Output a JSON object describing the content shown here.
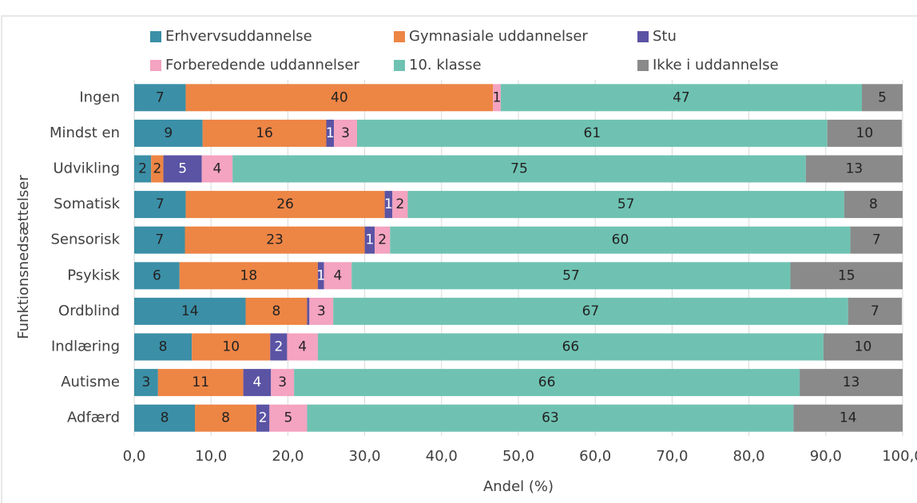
{
  "chart_data": {
    "type": "stacked-bar-horizontal",
    "y_label": "Funktionsnedsættelser",
    "x_label": "Andel (%)",
    "categories": [
      "Ingen",
      "Mindst en",
      "Udvikling",
      "Somatisk",
      "Sensorisk",
      "Psykisk",
      "Ordblind",
      "Indlæring",
      "Autisme",
      "Adfærd"
    ],
    "series": [
      {
        "name": "Erhvervsuddannelse",
        "color": "#3b8fa7",
        "values": [
          6.7,
          8.9,
          2.2,
          6.7,
          6.6,
          5.9,
          14.5,
          7.5,
          3.1,
          7.9
        ],
        "value_labels": [
          "7",
          "9",
          "2",
          "7",
          "7",
          "6",
          "14",
          "8",
          "3",
          "8"
        ]
      },
      {
        "name": "Gymnasiale uddannelser",
        "color": "#ed8545",
        "values": [
          40.0,
          16.1,
          1.6,
          25.9,
          23.4,
          18.0,
          8.0,
          10.2,
          11.1,
          8.0
        ],
        "value_labels": [
          "40",
          "16",
          "2",
          "26",
          "23",
          "18",
          "8",
          "10",
          "11",
          "8"
        ]
      },
      {
        "name": "Stu",
        "color": "#5b53a4",
        "values": [
          0,
          1.0,
          5.0,
          1.0,
          1.3,
          0.8,
          0.3,
          2.2,
          3.6,
          1.7
        ],
        "value_labels": [
          null,
          "1",
          "5",
          "1",
          "1",
          "1",
          null,
          "2",
          "4",
          "2"
        ]
      },
      {
        "name": "Forberedende uddannelser",
        "color": "#f4a3c0",
        "values": [
          1.0,
          3.0,
          4.0,
          2.0,
          2.0,
          3.6,
          3.1,
          4.0,
          3.0,
          4.9
        ],
        "value_labels": [
          "1",
          "3",
          "4",
          "2",
          "2",
          "4",
          "3",
          "4",
          "3",
          "5"
        ]
      },
      {
        "name": "10. klasse",
        "color": "#6fc2b2",
        "values": [
          47.0,
          61.2,
          74.6,
          56.8,
          59.9,
          57.1,
          67.0,
          65.8,
          65.8,
          63.3
        ],
        "value_labels": [
          "47",
          "61",
          "75",
          "57",
          "60",
          "57",
          "67",
          "66",
          "66",
          "63"
        ]
      },
      {
        "name": "Ikke i uddannelse",
        "color": "#8a8a8a",
        "values": [
          5.3,
          9.7,
          12.6,
          7.6,
          6.8,
          14.6,
          7.0,
          10.3,
          13.4,
          14.2
        ],
        "value_labels": [
          "5",
          "10",
          "13",
          "8",
          "7",
          "15",
          "7",
          "10",
          "13",
          "14"
        ]
      }
    ],
    "xlim": [
      0,
      100
    ],
    "xticks": [
      {
        "value": 0,
        "label": "0,0"
      },
      {
        "value": 10,
        "label": "10,0"
      },
      {
        "value": 20,
        "label": "20,0"
      },
      {
        "value": 30,
        "label": "30,0"
      },
      {
        "value": 40,
        "label": "40,0"
      },
      {
        "value": 50,
        "label": "50,0"
      },
      {
        "value": 60,
        "label": "60,0"
      },
      {
        "value": 70,
        "label": "70,0"
      },
      {
        "value": 80,
        "label": "80,0"
      },
      {
        "value": 90,
        "label": "90,0"
      },
      {
        "value": 100,
        "label": "100,0"
      }
    ],
    "grid": true
  }
}
